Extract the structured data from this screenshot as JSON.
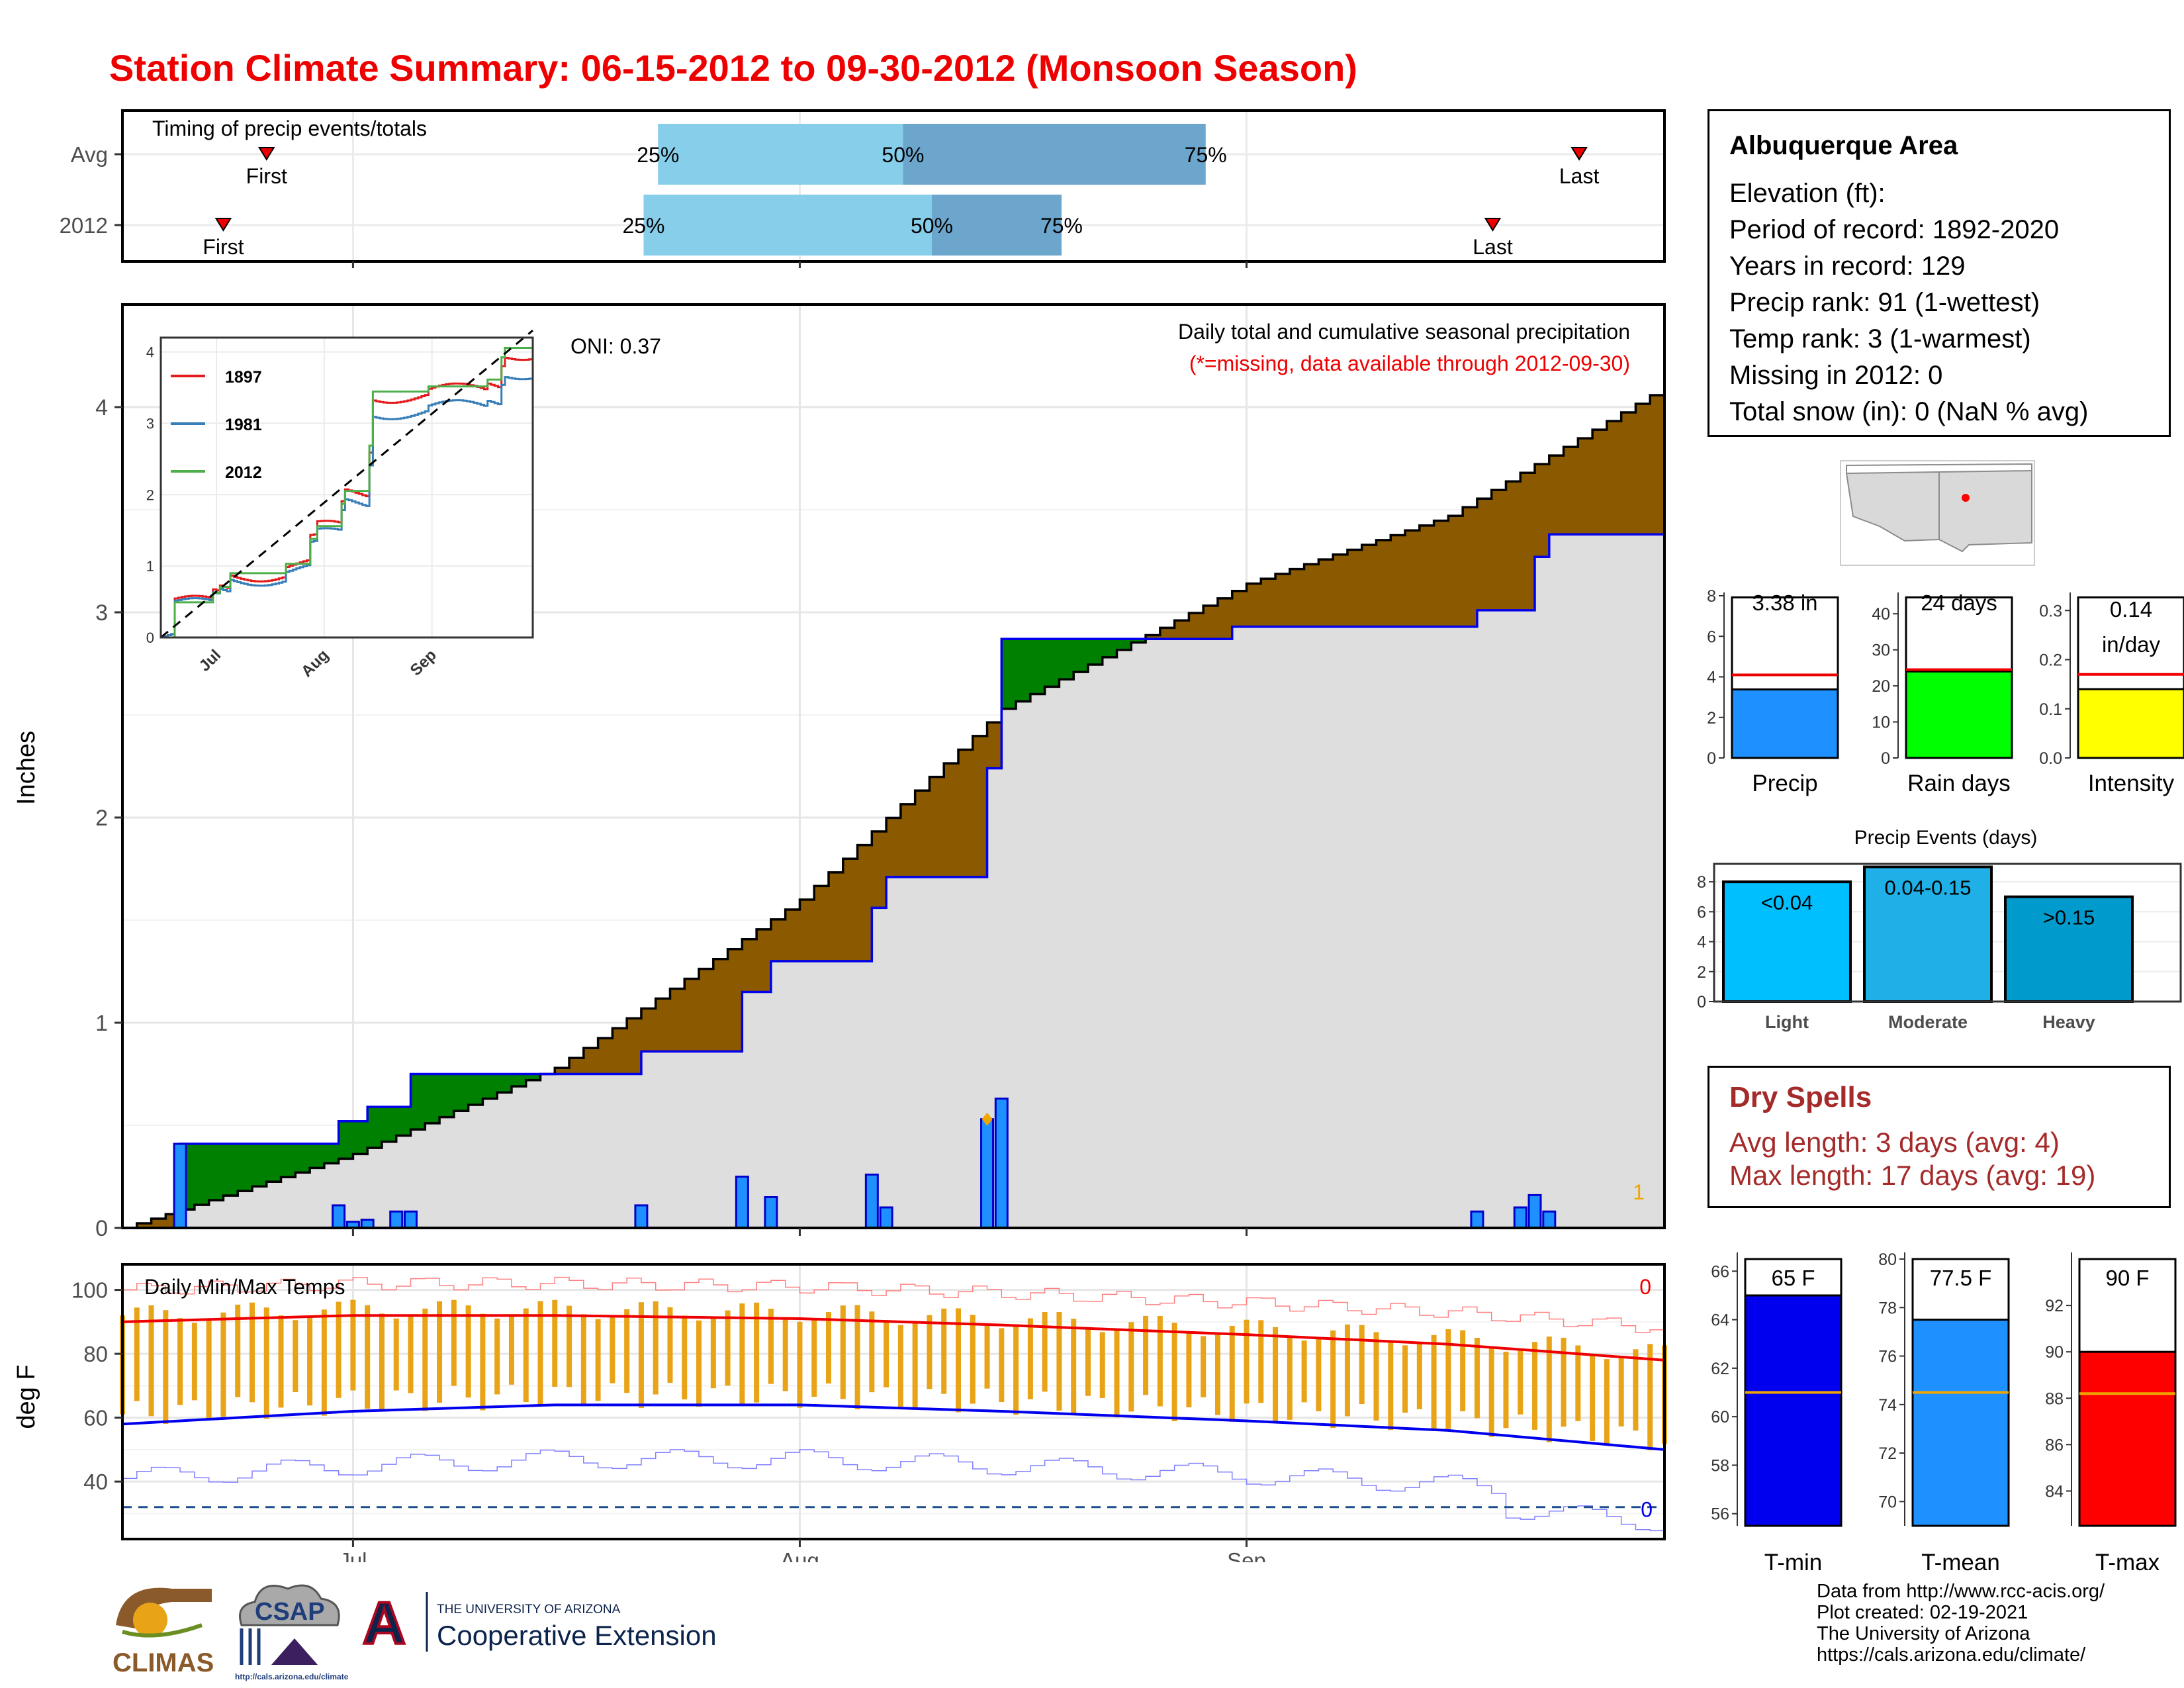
{
  "title": "Station Climate Summary: 06-15-2012 to 09-30-2012 (Monsoon Season)",
  "colors": {
    "title": "#ee0000",
    "deficit_fill": "#8b5a00",
    "surplus_fill": "#008000",
    "cumulative_line": "#0000ee",
    "bars": "#1e90ff",
    "timing_light": "#87ceeb",
    "timing_dark": "#6ca6cd",
    "tmax_line": "#ee0000",
    "tmin_line": "#0000ee",
    "temp_bars": "#e8a317"
  },
  "timing": {
    "title": "Timing of precip events/totals",
    "rows": [
      {
        "label": "Avg",
        "first_label": "First",
        "last_label": "Last",
        "p25_label": "25%",
        "p50_label": "50%",
        "p75_label": "75%"
      },
      {
        "label": "2012",
        "first_label": "First",
        "last_label": "Last",
        "p25_label": "25%",
        "p50_label": "50%",
        "p75_label": "75%"
      }
    ]
  },
  "main_panel": {
    "ylabel": "Inches",
    "ytick_labels": [
      "0",
      "1",
      "2",
      "3",
      "4"
    ],
    "x_ticks": [
      "Jul",
      "Aug",
      "Sep"
    ],
    "oni": "ONI: 0.37",
    "caption": "Daily total and cumulative seasonal precipitation",
    "missing_note": "(*=missing, data available through 2012-09-30)",
    "corner_value": "1"
  },
  "inset": {
    "legend": [
      "1897",
      "1981",
      "2012"
    ],
    "legend_colors": [
      "#e41a1c",
      "#377eb8",
      "#4daf4a"
    ],
    "ytick_labels": [
      "0",
      "1",
      "2",
      "3",
      "4"
    ],
    "x_ticks": [
      "Jul",
      "Aug",
      "Sep"
    ]
  },
  "temp_panel": {
    "ylabel": "deg F",
    "title": "Daily Min/Max Temps",
    "ytick_labels": [
      "40",
      "60",
      "80",
      "100"
    ],
    "x_ticks": [
      "Jul",
      "Aug",
      "Sep"
    ],
    "max_count": "0",
    "min_count": "0"
  },
  "info": {
    "station": "Albuquerque Area",
    "lines": [
      "Elevation (ft):",
      "Period of record: 1892-2020",
      "Years in record: 129",
      "Precip rank: 91 (1-wettest)",
      "Temp rank: 3 (1-warmest)",
      "Missing in 2012: 0",
      "Total snow (in): 0 (NaN % avg)"
    ]
  },
  "mini_bars": [
    {
      "name": "Precip",
      "value_label": "3.38 in",
      "value": 3.38,
      "avg": 4.1,
      "ymax": 8,
      "ticks": [
        "0",
        "2",
        "4",
        "6",
        "8"
      ],
      "color": "#1e90ff"
    },
    {
      "name": "Rain days",
      "value_label": "24 days",
      "value": 24,
      "avg": 24.5,
      "ymax": 45,
      "ticks": [
        "0",
        "10",
        "20",
        "30",
        "40"
      ],
      "color": "#00ff00"
    },
    {
      "name": "Intensity",
      "value_label_1": "0.14",
      "value_label_2": "in/day",
      "value": 0.14,
      "avg": 0.17,
      "ymax": 0.33,
      "ticks": [
        "0.0",
        "0.1",
        "0.2",
        "0.3"
      ],
      "color": "#ffff00"
    }
  ],
  "events": {
    "title": "Precip Events (days)",
    "ticks": [
      "0",
      "2",
      "4",
      "6",
      "8"
    ],
    "bars": [
      {
        "category": "Light",
        "label": "<0.04",
        "value": 8
      },
      {
        "category": "Moderate",
        "label": "0.04-0.15",
        "value": 9
      },
      {
        "category": "Heavy",
        "label": ">0.15",
        "value": 7
      }
    ]
  },
  "dry_spells": {
    "title": "Dry Spells",
    "avg_line": "Avg length: 3 days (avg: 4)",
    "max_line": "Max length: 17 days (avg: 19)"
  },
  "temp_bars": [
    {
      "name": "T-min",
      "value_label": "65 F",
      "value": 65,
      "avg": 61,
      "ymin": 55.5,
      "ymax": 66.5,
      "ticks": [
        "56",
        "58",
        "60",
        "62",
        "64",
        "66"
      ],
      "color": "#0000ee"
    },
    {
      "name": "T-mean",
      "value_label": "77.5 F",
      "value": 77.5,
      "avg": 74.5,
      "ymin": 69,
      "ymax": 80,
      "ticks": [
        "70",
        "72",
        "74",
        "76",
        "78",
        "80"
      ],
      "color": "#1e90ff"
    },
    {
      "name": "T-max",
      "value_label": "90 F",
      "value": 90,
      "avg": 88.2,
      "ymin": 82.5,
      "ymax": 94,
      "ticks": [
        "84",
        "86",
        "88",
        "90",
        "92"
      ],
      "color": "#ff0000"
    }
  ],
  "credits": [
    "Data from http://www.rcc-acis.org/",
    "Plot created: 02-19-2021",
    "The University of Arizona",
    "https://cals.arizona.edu/climate/"
  ],
  "logos": {
    "climas": "CLIMAS",
    "csap": "CSAP",
    "csap_url": "http://cals.arizona.edu/climate",
    "ua_mark": "A",
    "ua_top": "THE UNIVERSITY OF ARIZONA",
    "ua_bottom": "Cooperative Extension"
  },
  "chart_data": {
    "type": "area",
    "title": "Daily total and cumulative seasonal precipitation",
    "ylabel": "Inches",
    "ylim": [
      0,
      4.5
    ],
    "xlim": [
      "2012-06-15",
      "2012-09-30"
    ],
    "daily_precip_2012": [
      {
        "date": "2012-06-19",
        "value": 0.41
      },
      {
        "date": "2012-06-30",
        "value": 0.11
      },
      {
        "date": "2012-07-01",
        "value": 0.03
      },
      {
        "date": "2012-07-02",
        "value": 0.04
      },
      {
        "date": "2012-07-04",
        "value": 0.08
      },
      {
        "date": "2012-07-05",
        "value": 0.08
      },
      {
        "date": "2012-07-21",
        "value": 0.11
      },
      {
        "date": "2012-07-28",
        "value": 0.25
      },
      {
        "date": "2012-07-30",
        "value": 0.15
      },
      {
        "date": "2012-08-06",
        "value": 0.26
      },
      {
        "date": "2012-08-07",
        "value": 0.1
      },
      {
        "date": "2012-08-14",
        "value": 0.53
      },
      {
        "date": "2012-08-15",
        "value": 0.63
      },
      {
        "date": "2012-09-17",
        "value": 0.08
      },
      {
        "date": "2012-09-20",
        "value": 0.1
      },
      {
        "date": "2012-09-21",
        "value": 0.16
      },
      {
        "date": "2012-09-22",
        "value": 0.08
      }
    ],
    "cumulative_2012": [
      {
        "date": "2012-06-15",
        "value": 0
      },
      {
        "date": "2012-06-19",
        "value": 0.41
      },
      {
        "date": "2012-06-30",
        "value": 0.52
      },
      {
        "date": "2012-07-02",
        "value": 0.59
      },
      {
        "date": "2012-07-05",
        "value": 0.75
      },
      {
        "date": "2012-07-21",
        "value": 0.86
      },
      {
        "date": "2012-07-28",
        "value": 1.15
      },
      {
        "date": "2012-07-30",
        "value": 1.3
      },
      {
        "date": "2012-08-06",
        "value": 1.56
      },
      {
        "date": "2012-08-07",
        "value": 1.71
      },
      {
        "date": "2012-08-14",
        "value": 2.24
      },
      {
        "date": "2012-08-15",
        "value": 2.87
      },
      {
        "date": "2012-08-31",
        "value": 2.93
      },
      {
        "date": "2012-09-17",
        "value": 3.01
      },
      {
        "date": "2012-09-21",
        "value": 3.27
      },
      {
        "date": "2012-09-22",
        "value": 3.38
      }
    ],
    "average_cumulative": [
      {
        "date": "2012-06-15",
        "value": 0
      },
      {
        "date": "2012-07-01",
        "value": 0.36
      },
      {
        "date": "2012-07-15",
        "value": 0.78
      },
      {
        "date": "2012-08-01",
        "value": 1.6
      },
      {
        "date": "2012-08-15",
        "value": 2.53
      },
      {
        "date": "2012-09-01",
        "value": 3.14
      },
      {
        "date": "2012-09-15",
        "value": 3.47
      },
      {
        "date": "2012-09-30",
        "value": 4.1
      }
    ],
    "temperature": {
      "title": "Daily Min/Max Temps",
      "ylabel": "deg F",
      "ylim": [
        22,
        108
      ],
      "avg_tmax": [
        {
          "date": "2012-06-15",
          "value": 90
        },
        {
          "date": "2012-07-01",
          "value": 92
        },
        {
          "date": "2012-07-15",
          "value": 92
        },
        {
          "date": "2012-08-01",
          "value": 91
        },
        {
          "date": "2012-08-15",
          "value": 89
        },
        {
          "date": "2012-09-01",
          "value": 86
        },
        {
          "date": "2012-09-15",
          "value": 83
        },
        {
          "date": "2012-09-30",
          "value": 78
        }
      ],
      "avg_tmin": [
        {
          "date": "2012-06-15",
          "value": 58
        },
        {
          "date": "2012-07-01",
          "value": 62
        },
        {
          "date": "2012-07-15",
          "value": 64
        },
        {
          "date": "2012-08-01",
          "value": 64
        },
        {
          "date": "2012-08-15",
          "value": 62
        },
        {
          "date": "2012-09-01",
          "value": 59
        },
        {
          "date": "2012-09-15",
          "value": 56
        },
        {
          "date": "2012-09-30",
          "value": 50
        }
      ],
      "freezing_line": 32
    }
  }
}
